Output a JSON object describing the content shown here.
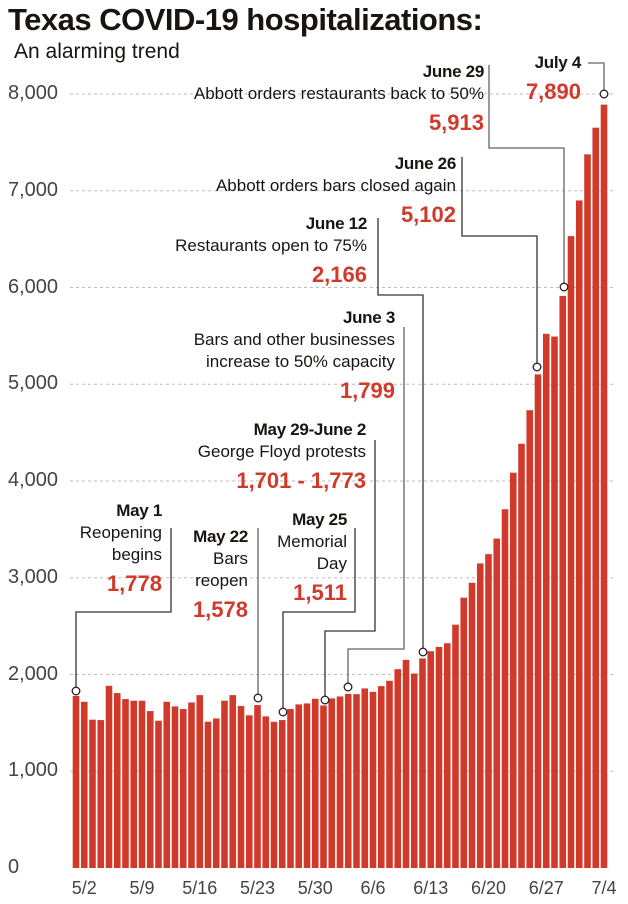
{
  "chart_data": {
    "type": "bar",
    "title": "Texas COVID-19 hospitalizations:",
    "subtitle": "An alarming trend",
    "xlabel": "",
    "ylabel": "",
    "ylim": [
      0,
      8000
    ],
    "grid": true,
    "bar_color": "#d13a2a",
    "y_ticks": [
      "0",
      "1,000",
      "2,000",
      "3,000",
      "4,000",
      "5,000",
      "6,000",
      "7,000",
      "8,000"
    ],
    "y_tick_values": [
      0,
      1000,
      2000,
      3000,
      4000,
      5000,
      6000,
      7000,
      8000
    ],
    "x_ticks": [
      "5/2",
      "5/9",
      "5/16",
      "5/23",
      "5/30",
      "6/6",
      "6/13",
      "6/20",
      "6/27",
      "7/4"
    ],
    "x_tick_index": [
      1,
      8,
      15,
      22,
      29,
      36,
      43,
      50,
      57,
      64
    ],
    "categories_start": "5/1",
    "categories_end": "7/4",
    "values": [
      1778,
      1718,
      1533,
      1529,
      1883,
      1808,
      1746,
      1729,
      1729,
      1622,
      1522,
      1718,
      1670,
      1643,
      1711,
      1787,
      1512,
      1546,
      1729,
      1787,
      1674,
      1578,
      1684,
      1567,
      1511,
      1529,
      1643,
      1691,
      1701,
      1749,
      1680,
      1753,
      1773,
      1799,
      1797,
      1856,
      1821,
      1880,
      1935,
      2055,
      2151,
      2010,
      2166,
      2240,
      2285,
      2323,
      2515,
      2794,
      2948,
      3148,
      3244,
      3405,
      3708,
      4086,
      4385,
      4732,
      5102,
      5521,
      5493,
      5913,
      6531,
      6900,
      7376,
      7652,
      7890
    ],
    "annotations": [
      {
        "date": "May 1",
        "lines": [
          "Reopening",
          "begins"
        ],
        "value": "1,778",
        "bar_index": 0
      },
      {
        "date": "May 22",
        "lines": [
          "Bars",
          "reopen"
        ],
        "value": "1,578",
        "bar_index": 22
      },
      {
        "date": "May 25",
        "lines": [
          "Memorial",
          "Day"
        ],
        "value": "1,511",
        "bar_index": 25
      },
      {
        "date": "May 29-June 2",
        "lines": [
          "George Floyd protests"
        ],
        "value": "1,701 - 1,773",
        "bar_index": 30
      },
      {
        "date": "June 3",
        "lines": [
          "Bars and other businesses",
          "increase to 50% capacity"
        ],
        "value": "1,799",
        "bar_index": 33
      },
      {
        "date": "June 12",
        "lines": [
          "Restaurants open to 75%"
        ],
        "value": "2,166",
        "bar_index": 42
      },
      {
        "date": "June 26",
        "lines": [
          "Abbott orders bars closed again"
        ],
        "value": "5,102",
        "bar_index": 56
      },
      {
        "date": "June 29",
        "lines": [
          "Abbott orders restaurants back to 50%"
        ],
        "value": "5,913",
        "bar_index": 59
      },
      {
        "date": "July 4",
        "lines": [],
        "value": "7,890",
        "bar_index": 64
      }
    ]
  }
}
